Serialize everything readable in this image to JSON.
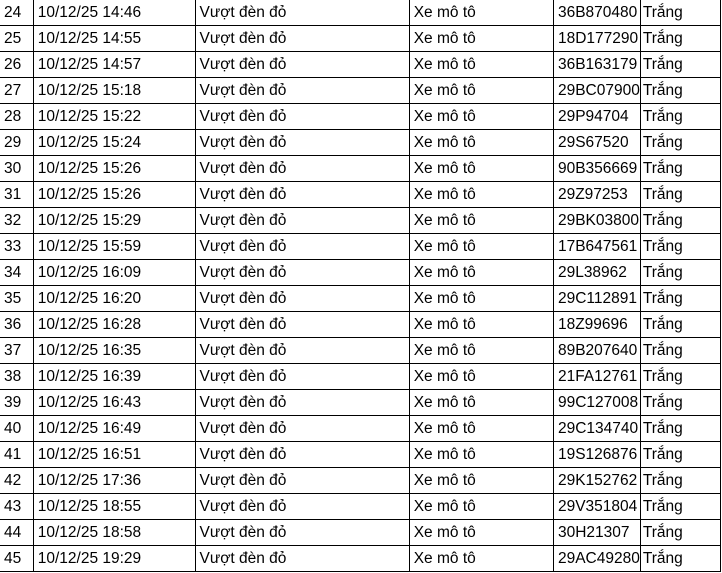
{
  "rows": [
    {
      "no": "24",
      "time": "10/12/25 14:46",
      "violation": "Vượt đèn đỏ",
      "vehicle": "Xe mô tô",
      "plate": "36B870480",
      "color": "Trắng"
    },
    {
      "no": "25",
      "time": "10/12/25 14:55",
      "violation": "Vượt đèn đỏ",
      "vehicle": "Xe mô tô",
      "plate": "18D177290",
      "color": "Trắng"
    },
    {
      "no": "26",
      "time": "10/12/25 14:57",
      "violation": "Vượt đèn đỏ",
      "vehicle": "Xe mô tô",
      "plate": "36B163179",
      "color": "Trắng"
    },
    {
      "no": "27",
      "time": "10/12/25 15:18",
      "violation": "Vượt đèn đỏ",
      "vehicle": "Xe mô tô",
      "plate": "29BC07900",
      "color": "Trắng"
    },
    {
      "no": "28",
      "time": "10/12/25 15:22",
      "violation": "Vượt đèn đỏ",
      "vehicle": "Xe mô tô",
      "plate": "29P94704",
      "color": "Trắng"
    },
    {
      "no": "29",
      "time": "10/12/25 15:24",
      "violation": "Vượt đèn đỏ",
      "vehicle": "Xe mô tô",
      "plate": "29S67520",
      "color": "Trắng"
    },
    {
      "no": "30",
      "time": "10/12/25 15:26",
      "violation": "Vượt đèn đỏ",
      "vehicle": "Xe mô tô",
      "plate": "90B356669",
      "color": "Trắng"
    },
    {
      "no": "31",
      "time": "10/12/25 15:26",
      "violation": "Vượt đèn đỏ",
      "vehicle": "Xe mô tô",
      "plate": "29Z97253",
      "color": "Trắng"
    },
    {
      "no": "32",
      "time": "10/12/25 15:29",
      "violation": "Vượt đèn đỏ",
      "vehicle": "Xe mô tô",
      "plate": "29BK03800",
      "color": "Trắng"
    },
    {
      "no": "33",
      "time": "10/12/25 15:59",
      "violation": "Vượt đèn đỏ",
      "vehicle": "Xe mô tô",
      "plate": "17B647561",
      "color": "Trắng"
    },
    {
      "no": "34",
      "time": "10/12/25 16:09",
      "violation": "Vượt đèn đỏ",
      "vehicle": "Xe mô tô",
      "plate": "29L38962",
      "color": "Trắng"
    },
    {
      "no": "35",
      "time": "10/12/25 16:20",
      "violation": "Vượt đèn đỏ",
      "vehicle": "Xe mô tô",
      "plate": "29C112891",
      "color": "Trắng"
    },
    {
      "no": "36",
      "time": "10/12/25 16:28",
      "violation": "Vượt đèn đỏ",
      "vehicle": "Xe mô tô",
      "plate": "18Z99696",
      "color": "Trắng"
    },
    {
      "no": "37",
      "time": "10/12/25 16:35",
      "violation": "Vượt đèn đỏ",
      "vehicle": "Xe mô tô",
      "plate": "89B207640",
      "color": "Trắng"
    },
    {
      "no": "38",
      "time": "10/12/25 16:39",
      "violation": "Vượt đèn đỏ",
      "vehicle": "Xe mô tô",
      "plate": "21FA12761",
      "color": "Trắng"
    },
    {
      "no": "39",
      "time": "10/12/25 16:43",
      "violation": "Vượt đèn đỏ",
      "vehicle": "Xe mô tô",
      "plate": "99C127008",
      "color": "Trắng"
    },
    {
      "no": "40",
      "time": "10/12/25 16:49",
      "violation": "Vượt đèn đỏ",
      "vehicle": "Xe mô tô",
      "plate": "29C134740",
      "color": "Trắng"
    },
    {
      "no": "41",
      "time": "10/12/25 16:51",
      "violation": "Vượt đèn đỏ",
      "vehicle": "Xe mô tô",
      "plate": "19S126876",
      "color": "Trắng"
    },
    {
      "no": "42",
      "time": "10/12/25 17:36",
      "violation": "Vượt đèn đỏ",
      "vehicle": "Xe mô tô",
      "plate": "29K152762",
      "color": "Trắng"
    },
    {
      "no": "43",
      "time": "10/12/25 18:55",
      "violation": "Vượt đèn đỏ",
      "vehicle": "Xe mô tô",
      "plate": "29V351804",
      "color": "Trắng"
    },
    {
      "no": "44",
      "time": "10/12/25 18:58",
      "violation": "Vượt đèn đỏ",
      "vehicle": "Xe mô tô",
      "plate": "30H21307",
      "color": "Trắng"
    },
    {
      "no": "45",
      "time": "10/12/25 19:29",
      "violation": "Vượt đèn đỏ",
      "vehicle": "Xe mô tô",
      "plate": "29AC49280",
      "color": "Trắng"
    }
  ]
}
